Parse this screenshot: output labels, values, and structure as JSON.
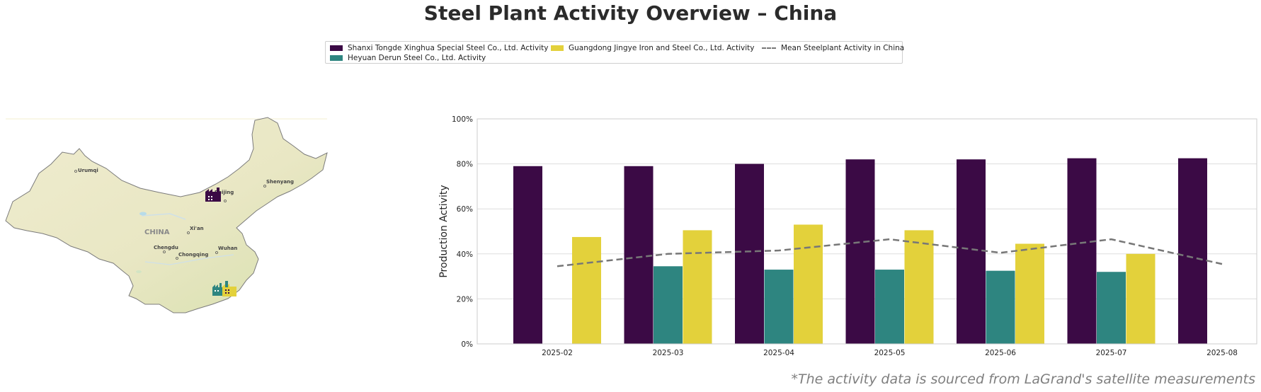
{
  "title": "Steel Plant Activity Overview – China",
  "footnote": "*The activity data is sourced from LaGrand's satellite measurements",
  "legend": [
    {
      "label": "Shanxi Tongde Xinghua Special Steel Co., Ltd. Activity",
      "color": "#3b0a45",
      "kind": "bar"
    },
    {
      "label": "Heyuan Derun Steel Co., Ltd. Activity",
      "color": "#2e8580",
      "kind": "bar"
    },
    {
      "label": "Guangdong Jingye Iron and Steel Co., Ltd. Activity",
      "color": "#e3d13b",
      "kind": "bar"
    },
    {
      "label": "Mean Steelplant Activity in China",
      "color": "#777777",
      "kind": "dashed-line"
    }
  ],
  "map": {
    "country_label": "CHINA",
    "cities": [
      "Urumqi",
      "Beijing",
      "Shenyang",
      "Xi'an",
      "Chengdu",
      "Chongqing",
      "Wuhan"
    ],
    "markers": [
      {
        "plant": "Shanxi Tongde Xinghua Special Steel Co., Ltd.",
        "color": "#3b0a45",
        "icon": "factory-icon"
      },
      {
        "plant": "Heyuan Derun Steel Co., Ltd.",
        "color": "#2e8580",
        "icon": "factory-icon"
      },
      {
        "plant": "Guangdong Jingye Iron and Steel Co., Ltd.",
        "color": "#e3d13b",
        "icon": "factory-icon"
      }
    ]
  },
  "chart_data": {
    "type": "bar",
    "categories": [
      "2025-02",
      "2025-03",
      "2025-04",
      "2025-05",
      "2025-06",
      "2025-07",
      "2025-08"
    ],
    "series": [
      {
        "name": "Shanxi Tongde Xinghua Special Steel Co., Ltd. Activity",
        "color": "#3b0a45",
        "values": [
          79,
          79,
          80,
          82,
          82,
          82.5,
          82.5
        ]
      },
      {
        "name": "Heyuan Derun Steel Co., Ltd. Activity",
        "color": "#2e8580",
        "values": [
          null,
          34.5,
          33,
          33,
          32.5,
          32,
          null
        ]
      },
      {
        "name": "Guangdong Jingye Iron and Steel Co., Ltd. Activity",
        "color": "#e3d13b",
        "values": [
          47.5,
          50.5,
          53,
          50.5,
          44.5,
          40,
          null
        ]
      }
    ],
    "line": {
      "name": "Mean Steelplant Activity in China",
      "color": "#777777",
      "style": "dashed",
      "values": [
        34.5,
        40,
        41.5,
        46.5,
        40.5,
        46.5,
        35.5
      ]
    },
    "ylabel": "Production Activity",
    "xlabel": "",
    "ylim": [
      0,
      100
    ],
    "yticks": [
      "0%",
      "20%",
      "40%",
      "60%",
      "80%",
      "100%"
    ],
    "grid": "horizontal"
  }
}
